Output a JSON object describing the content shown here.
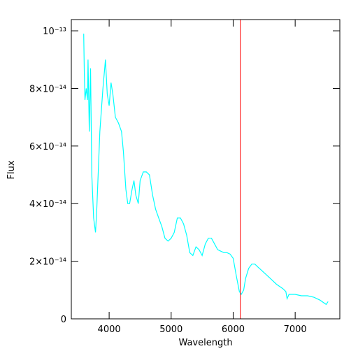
{
  "chart_data": {
    "type": "line",
    "xlabel": "Wavelength",
    "ylabel": "Flux",
    "xlim": [
      3390,
      7720
    ],
    "ylim": [
      0,
      1.039e-13
    ],
    "xticks": [
      4000,
      5000,
      6000,
      7000
    ],
    "yticks": [
      0,
      {
        "value": 2e-14,
        "label": "2×10⁻¹⁴"
      },
      {
        "value": 4e-14,
        "label": "4×10⁻¹⁴"
      },
      {
        "value": 6e-14,
        "label": "6×10⁻¹⁴"
      },
      {
        "value": 8e-14,
        "label": "8×10⁻¹⁴"
      },
      {
        "value": 1e-13,
        "label": "10⁻¹³"
      }
    ],
    "marker_x": 6115,
    "marker_color": "#ff0000",
    "series": [
      {
        "color": "#00ffff",
        "x": [
          3590,
          3600,
          3610,
          3630,
          3650,
          3660,
          3680,
          3700,
          3720,
          3750,
          3780,
          3800,
          3850,
          3900,
          3940,
          3970,
          4000,
          4030,
          4060,
          4100,
          4150,
          4200,
          4230,
          4270,
          4300,
          4330,
          4370,
          4400,
          4430,
          4470,
          4500,
          4550,
          4600,
          4650,
          4700,
          4750,
          4800,
          4850,
          4900,
          4950,
          5000,
          5050,
          5100,
          5150,
          5200,
          5250,
          5300,
          5350,
          5400,
          5450,
          5500,
          5550,
          5600,
          5650,
          5700,
          5750,
          5800,
          5850,
          5900,
          5950,
          6000,
          6050,
          6100,
          6130,
          6170,
          6200,
          6250,
          6300,
          6350,
          6400,
          6500,
          6600,
          6700,
          6800,
          6850,
          6870,
          6900,
          7000,
          7100,
          7200,
          7300,
          7400,
          7500,
          7530
        ],
        "values": [
          9.9e-14,
          8.5e-14,
          7.6e-14,
          8e-14,
          7.6e-14,
          9e-14,
          6.5e-14,
          8.7e-14,
          5e-14,
          3.5e-14,
          3e-14,
          3.8e-14,
          6.5e-14,
          8e-14,
          9e-14,
          7.8e-14,
          7.4e-14,
          8.2e-14,
          7.8e-14,
          7e-14,
          6.8e-14,
          6.5e-14,
          5.8e-14,
          4.5e-14,
          4e-14,
          4e-14,
          4.5e-14,
          4.8e-14,
          4.3e-14,
          4e-14,
          4.8e-14,
          5.1e-14,
          5.1e-14,
          5e-14,
          4.3e-14,
          3.8e-14,
          3.5e-14,
          3.2e-14,
          2.8e-14,
          2.7e-14,
          2.8e-14,
          3e-14,
          3.5e-14,
          3.5e-14,
          3.3e-14,
          2.9e-14,
          2.3e-14,
          2.2e-14,
          2.5e-14,
          2.4e-14,
          2.2e-14,
          2.6e-14,
          2.8e-14,
          2.8e-14,
          2.6e-14,
          2.4e-14,
          2.35e-14,
          2.3e-14,
          2.3e-14,
          2.25e-14,
          2.1e-14,
          1.5e-14,
          9.5e-15,
          8.5e-15,
          1e-14,
          1.4e-14,
          1.75e-14,
          1.9e-14,
          1.9e-14,
          1.8e-14,
          1.6e-14,
          1.4e-14,
          1.2e-14,
          1.05e-14,
          9.5e-15,
          7e-15,
          8.5e-15,
          8.5e-15,
          8e-15,
          8e-15,
          7.5e-15,
          6.5e-15,
          5e-15,
          6e-15
        ]
      }
    ]
  }
}
